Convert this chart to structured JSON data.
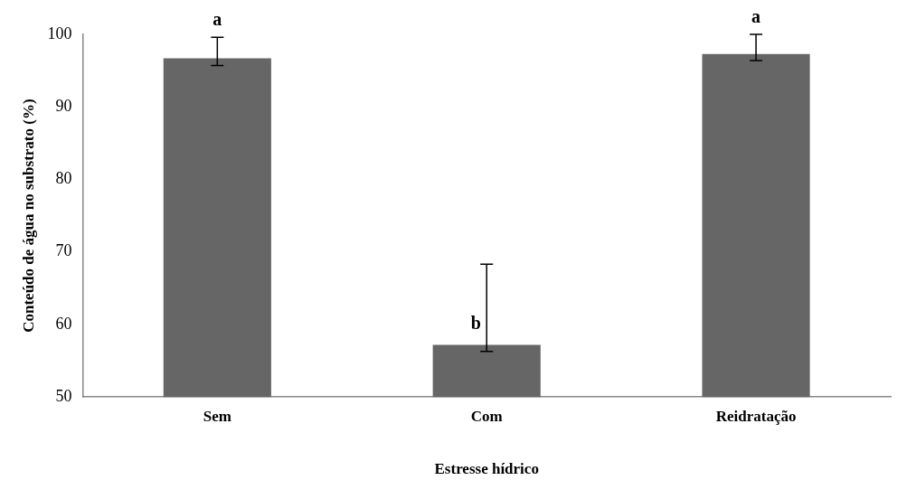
{
  "chart_data": {
    "type": "bar",
    "xlabel": "Estresse hídrico",
    "ylabel": "Conteúdo de água no substrato (%)",
    "categories": [
      "Sem",
      "Com",
      "Reidratação"
    ],
    "values": [
      96.7,
      57.2,
      97.3
    ],
    "errors": [
      [
        95.7,
        99.6
      ],
      [
        56.3,
        68.3
      ],
      [
        96.4,
        100
      ]
    ],
    "color": "#666666",
    "ylim": [
      50,
      100
    ],
    "yticks": [
      50,
      60,
      70,
      80,
      90,
      100
    ],
    "grid": false,
    "legend": false,
    "annotations": [
      {
        "text": "a",
        "x": "Sem",
        "y": 99.6
      },
      {
        "text": "b",
        "x": "Com",
        "y": 60
      },
      {
        "text": "a",
        "x": "Reidratação",
        "y": 100
      }
    ]
  }
}
